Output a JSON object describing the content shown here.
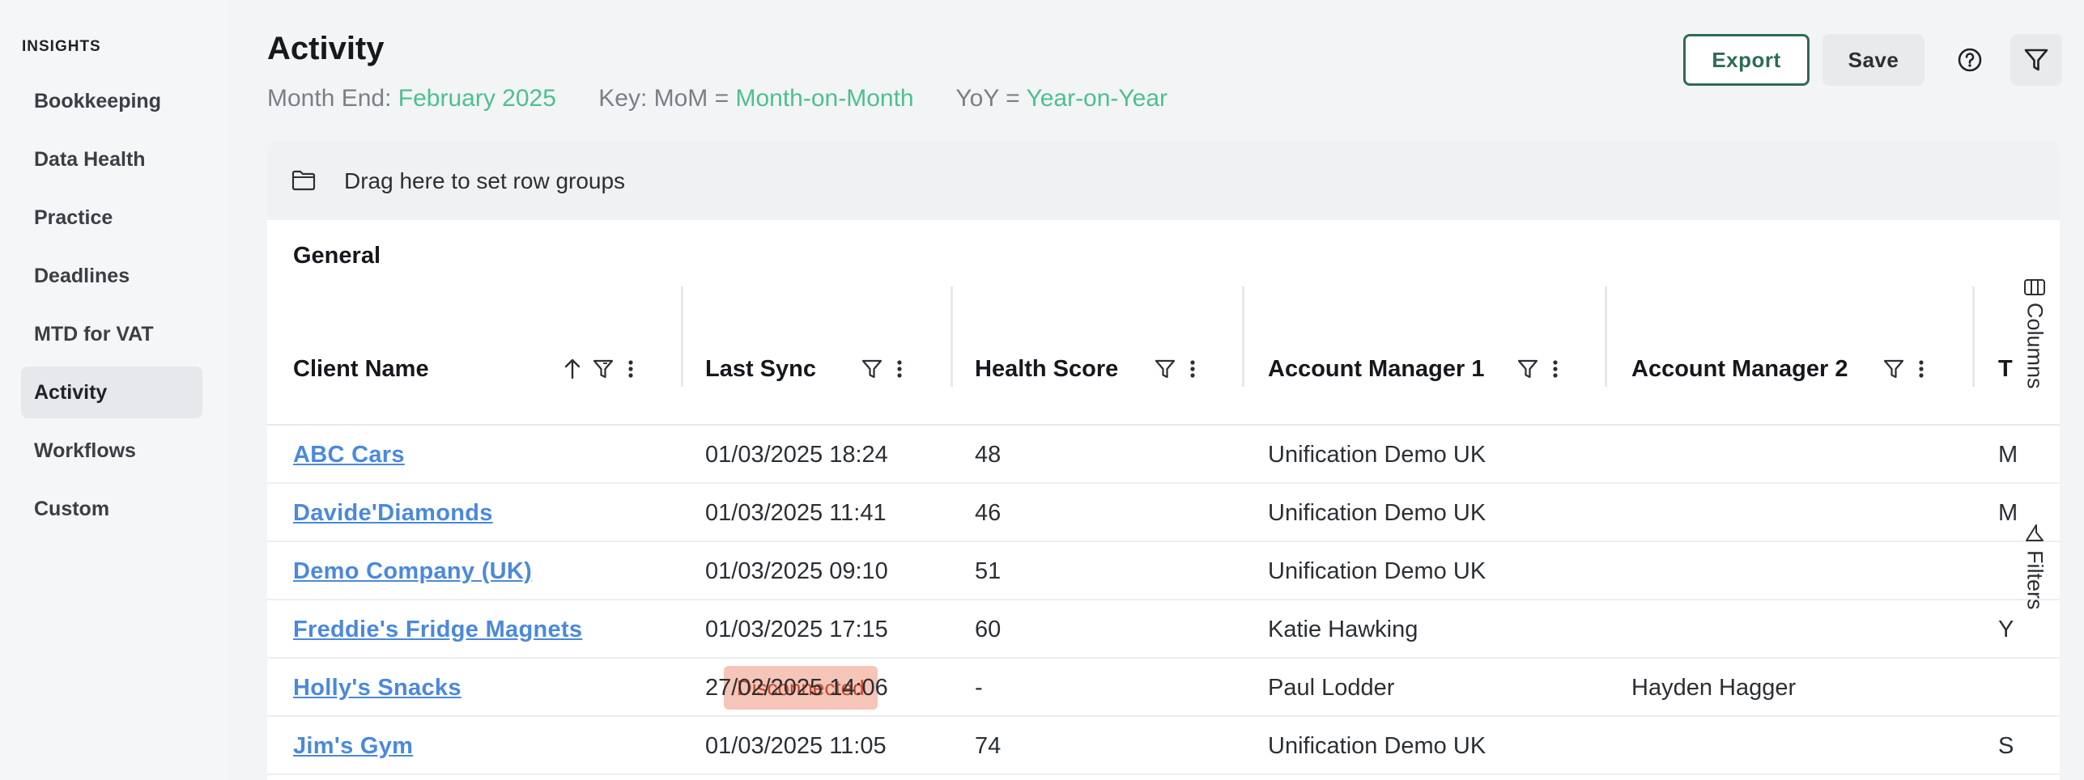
{
  "sidebar": {
    "heading": "INSIGHTS",
    "items": [
      {
        "label": "Bookkeeping",
        "active": false
      },
      {
        "label": "Data Health",
        "active": false
      },
      {
        "label": "Practice",
        "active": false
      },
      {
        "label": "Deadlines",
        "active": false
      },
      {
        "label": "MTD for VAT",
        "active": false
      },
      {
        "label": "Activity",
        "active": true
      },
      {
        "label": "Workflows",
        "active": false
      },
      {
        "label": "Custom",
        "active": false
      }
    ]
  },
  "header": {
    "title": "Activity",
    "month_end_label": "Month End:",
    "month_end_value": "February 2025",
    "key_label": "Key: MoM =",
    "key_value": "Month-on-Month",
    "yoy_label": "YoY =",
    "yoy_value": "Year-on-Year",
    "export_label": "Export",
    "save_label": "Save"
  },
  "grid": {
    "group_bar_text": "Drag here to set row groups",
    "section_label": "General",
    "columns": [
      {
        "label": "Client Name"
      },
      {
        "label": "Last Sync"
      },
      {
        "label": "Health Score"
      },
      {
        "label": "Account Manager 1"
      },
      {
        "label": "Account Manager 2"
      },
      {
        "label": "T"
      }
    ],
    "rows": [
      {
        "client": "ABC Cars",
        "badge": "",
        "last_sync": "01/03/2025 18:24",
        "health": "48",
        "am1": "Unification Demo UK",
        "am2": "",
        "next": "M"
      },
      {
        "client": "Davide'Diamonds",
        "badge": "",
        "last_sync": "01/03/2025 11:41",
        "health": "46",
        "am1": "Unification Demo UK",
        "am2": "",
        "next": "M"
      },
      {
        "client": "Demo Company (UK)",
        "badge": "",
        "last_sync": "01/03/2025 09:10",
        "health": "51",
        "am1": "Unification Demo UK",
        "am2": "",
        "next": ""
      },
      {
        "client": "Freddie's Fridge Magnets",
        "badge": "",
        "last_sync": "01/03/2025 17:15",
        "health": "60",
        "am1": "Katie Hawking",
        "am2": "",
        "next": "Y"
      },
      {
        "client": "Holly's Snacks",
        "badge": "Disconnected",
        "last_sync": "27/02/2025 14:06",
        "health": "-",
        "am1": "Paul Lodder",
        "am2": "Hayden Hagger",
        "next": ""
      },
      {
        "client": "Jim's Gym",
        "badge": "",
        "last_sync": "01/03/2025 11:05",
        "health": "74",
        "am1": "Unification Demo UK",
        "am2": "",
        "next": "S"
      }
    ],
    "side_tabs": {
      "columns": "Columns",
      "filters": "Filters"
    }
  }
}
